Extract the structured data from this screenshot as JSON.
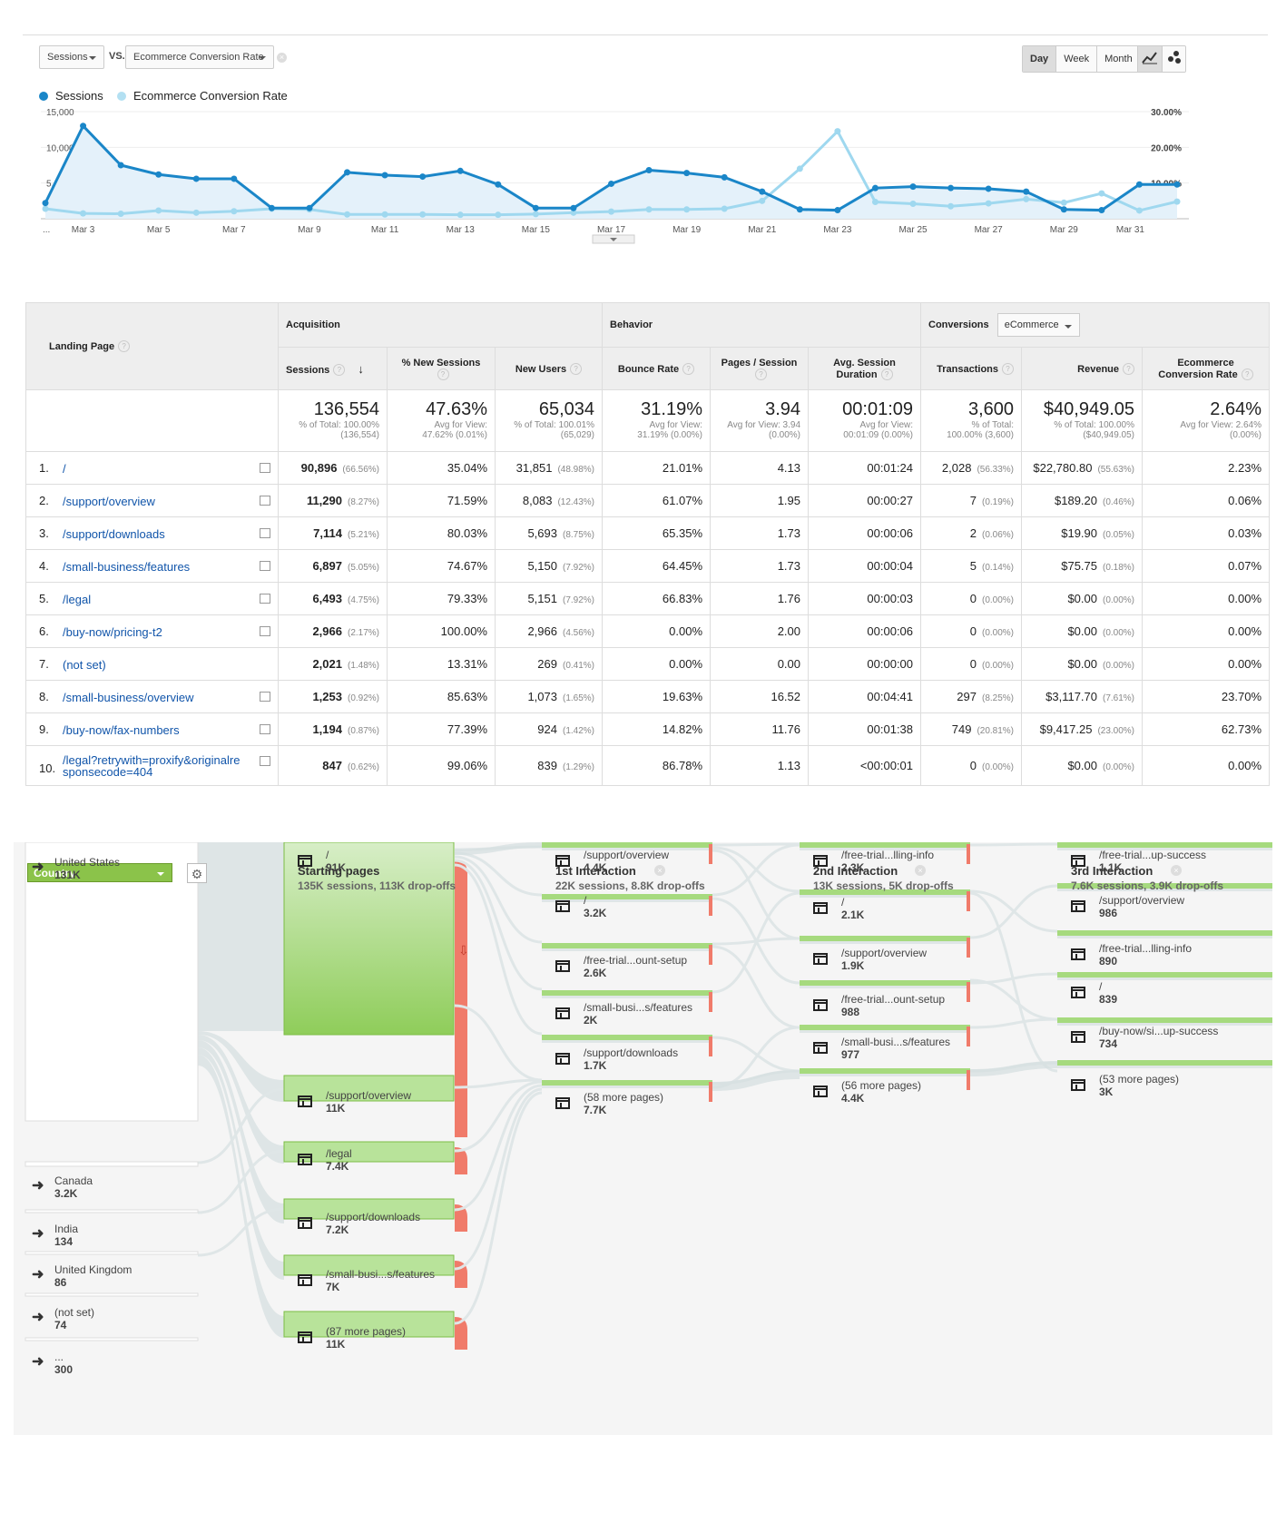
{
  "chart_controls": {
    "metric1": "Sessions",
    "vs_label": "VS.",
    "metric2": "Ecommerce Conversion Rate",
    "clear_icon": "close-circle-icon",
    "periods": [
      "Day",
      "Week",
      "Month"
    ],
    "active_period": "Day",
    "view_icons": [
      "line-chart-icon",
      "motion-chart-icon"
    ]
  },
  "chart_data": {
    "type": "line",
    "legend": "top-left",
    "x_tick_labels": [
      "...",
      "Mar 3",
      "Mar 5",
      "Mar 7",
      "Mar 9",
      "Mar 11",
      "Mar 13",
      "Mar 15",
      "Mar 17",
      "Mar 19",
      "Mar 21",
      "Mar 23",
      "Mar 25",
      "Mar 27",
      "Mar 29",
      "Mar 31"
    ],
    "y_left_ticks": [
      "15,000",
      "10,000",
      "5,000"
    ],
    "y_left_range": [
      0,
      15000
    ],
    "y_right_ticks": [
      "30.00%",
      "20.00%",
      "10.00%"
    ],
    "y_right_range": [
      0,
      30
    ],
    "series": [
      {
        "name": "Sessions",
        "color": "#1a86c8",
        "area": true,
        "axis": "left",
        "values": [
          2200,
          13000,
          7500,
          6200,
          5600,
          5600,
          1500,
          1500,
          6500,
          6100,
          5900,
          6700,
          4800,
          1500,
          1500,
          4900,
          6800,
          6400,
          5800,
          3800,
          1300,
          1200,
          4300,
          4500,
          4300,
          4200,
          3800,
          1300,
          1200,
          4800,
          4800
        ]
      },
      {
        "name": "Ecommerce Conversion Rate",
        "color": "#9fd8ef",
        "area": false,
        "axis": "right",
        "values": [
          2.8,
          1.5,
          1.4,
          2.3,
          1.7,
          2.1,
          2.8,
          2.6,
          1.2,
          1.2,
          1.2,
          1.1,
          1.1,
          1.3,
          1.7,
          2.0,
          2.6,
          2.6,
          2.8,
          5.0,
          14.0,
          24.5,
          4.7,
          4.2,
          3.5,
          4.3,
          5.5,
          4.5,
          7.1,
          2.3,
          4.8
        ]
      }
    ]
  },
  "table": {
    "landing_page_header": "Landing Page",
    "groups": {
      "acquisition": "Acquisition",
      "behavior": "Behavior",
      "conversions": "Conversions",
      "conversions_select": "eCommerce"
    },
    "columns": [
      "Sessions",
      "% New Sessions",
      "New Users",
      "Bounce Rate",
      "Pages / Session",
      "Avg. Session Duration",
      "Transactions",
      "Revenue",
      "Ecommerce Conversion Rate"
    ],
    "totals": [
      {
        "value": "136,554",
        "sub1": "% of Total: 100.00%",
        "sub2": "(136,554)"
      },
      {
        "value": "47.63%",
        "sub1": "Avg for View:",
        "sub2": "47.62% (0.01%)"
      },
      {
        "value": "65,034",
        "sub1": "% of Total: 100.01%",
        "sub2": "(65,029)"
      },
      {
        "value": "31.19%",
        "sub1": "Avg for View:",
        "sub2": "31.19% (0.00%)"
      },
      {
        "value": "3.94",
        "sub1": "Avg for View: 3.94",
        "sub2": "(0.00%)"
      },
      {
        "value": "00:01:09",
        "sub1": "Avg for View:",
        "sub2": "00:01:09 (0.00%)"
      },
      {
        "value": "3,600",
        "sub1": "% of Total:",
        "sub2": "100.00% (3,600)"
      },
      {
        "value": "$40,949.05",
        "sub1": "% of Total: 100.00%",
        "sub2": "($40,949.05)"
      },
      {
        "value": "2.64%",
        "sub1": "Avg for View: 2.64%",
        "sub2": "(0.00%)"
      }
    ],
    "rows": [
      {
        "num": "1.",
        "page": "/",
        "ext": true,
        "sessions": "90,896",
        "sessions_pct": "(66.56%)",
        "new_sessions": "35.04%",
        "new_users": "31,851",
        "new_users_pct": "(48.98%)",
        "bounce": "21.01%",
        "pages": "4.13",
        "duration": "00:01:24",
        "transactions": "2,028",
        "transactions_pct": "(56.33%)",
        "revenue": "$22,780.80",
        "revenue_pct": "(55.63%)",
        "conv": "2.23%"
      },
      {
        "num": "2.",
        "page": "/support/overview",
        "ext": true,
        "sessions": "11,290",
        "sessions_pct": "(8.27%)",
        "new_sessions": "71.59%",
        "new_users": "8,083",
        "new_users_pct": "(12.43%)",
        "bounce": "61.07%",
        "pages": "1.95",
        "duration": "00:00:27",
        "transactions": "7",
        "transactions_pct": "(0.19%)",
        "revenue": "$189.20",
        "revenue_pct": "(0.46%)",
        "conv": "0.06%"
      },
      {
        "num": "3.",
        "page": "/support/downloads",
        "ext": true,
        "sessions": "7,114",
        "sessions_pct": "(5.21%)",
        "new_sessions": "80.03%",
        "new_users": "5,693",
        "new_users_pct": "(8.75%)",
        "bounce": "65.35%",
        "pages": "1.73",
        "duration": "00:00:06",
        "transactions": "2",
        "transactions_pct": "(0.06%)",
        "revenue": "$19.90",
        "revenue_pct": "(0.05%)",
        "conv": "0.03%"
      },
      {
        "num": "4.",
        "page": "/small-business/features",
        "ext": true,
        "sessions": "6,897",
        "sessions_pct": "(5.05%)",
        "new_sessions": "74.67%",
        "new_users": "5,150",
        "new_users_pct": "(7.92%)",
        "bounce": "64.45%",
        "pages": "1.73",
        "duration": "00:00:04",
        "transactions": "5",
        "transactions_pct": "(0.14%)",
        "revenue": "$75.75",
        "revenue_pct": "(0.18%)",
        "conv": "0.07%"
      },
      {
        "num": "5.",
        "page": "/legal",
        "ext": true,
        "sessions": "6,493",
        "sessions_pct": "(4.75%)",
        "new_sessions": "79.33%",
        "new_users": "5,151",
        "new_users_pct": "(7.92%)",
        "bounce": "66.83%",
        "pages": "1.76",
        "duration": "00:00:03",
        "transactions": "0",
        "transactions_pct": "(0.00%)",
        "revenue": "$0.00",
        "revenue_pct": "(0.00%)",
        "conv": "0.00%"
      },
      {
        "num": "6.",
        "page": "/buy-now/pricing-t2",
        "ext": true,
        "sessions": "2,966",
        "sessions_pct": "(2.17%)",
        "new_sessions": "100.00%",
        "new_users": "2,966",
        "new_users_pct": "(4.56%)",
        "bounce": "0.00%",
        "pages": "2.00",
        "duration": "00:00:06",
        "transactions": "0",
        "transactions_pct": "(0.00%)",
        "revenue": "$0.00",
        "revenue_pct": "(0.00%)",
        "conv": "0.00%"
      },
      {
        "num": "7.",
        "page": "(not set)",
        "ext": false,
        "sessions": "2,021",
        "sessions_pct": "(1.48%)",
        "new_sessions": "13.31%",
        "new_users": "269",
        "new_users_pct": "(0.41%)",
        "bounce": "0.00%",
        "pages": "0.00",
        "duration": "00:00:00",
        "transactions": "0",
        "transactions_pct": "(0.00%)",
        "revenue": "$0.00",
        "revenue_pct": "(0.00%)",
        "conv": "0.00%"
      },
      {
        "num": "8.",
        "page": "/small-business/overview",
        "ext": true,
        "sessions": "1,253",
        "sessions_pct": "(0.92%)",
        "new_sessions": "85.63%",
        "new_users": "1,073",
        "new_users_pct": "(1.65%)",
        "bounce": "19.63%",
        "pages": "16.52",
        "duration": "00:04:41",
        "transactions": "297",
        "transactions_pct": "(8.25%)",
        "revenue": "$3,117.70",
        "revenue_pct": "(7.61%)",
        "conv": "23.70%"
      },
      {
        "num": "9.",
        "page": "/buy-now/fax-numbers",
        "ext": true,
        "sessions": "1,194",
        "sessions_pct": "(0.87%)",
        "new_sessions": "77.39%",
        "new_users": "924",
        "new_users_pct": "(1.42%)",
        "bounce": "14.82%",
        "pages": "11.76",
        "duration": "00:01:38",
        "transactions": "749",
        "transactions_pct": "(20.81%)",
        "revenue": "$9,417.25",
        "revenue_pct": "(23.00%)",
        "conv": "62.73%"
      },
      {
        "num": "10.",
        "page": "/legal?retrywith=proxify&originalresponsecode=404",
        "ext": true,
        "sessions": "847",
        "sessions_pct": "(0.62%)",
        "new_sessions": "99.06%",
        "new_users": "839",
        "new_users_pct": "(1.29%)",
        "bounce": "86.78%",
        "pages": "1.13",
        "duration": "<00:00:01",
        "transactions": "0",
        "transactions_pct": "(0.00%)",
        "revenue": "$0.00",
        "revenue_pct": "(0.00%)",
        "conv": "0.00%"
      }
    ]
  },
  "flow": {
    "dimension_select": "Country",
    "columns": [
      {
        "title": "Starting pages",
        "sub": "135K sessions, 113K drop-offs"
      },
      {
        "title": "1st Interaction",
        "sub": "22K sessions, 8.8K drop-offs"
      },
      {
        "title": "2nd Interaction",
        "sub": "13K sessions, 5K drop-offs"
      },
      {
        "title": "3rd Interaction",
        "sub": "7.6K sessions, 3.9K drop-offs"
      }
    ],
    "countries": [
      {
        "name": "United States",
        "value": "131K"
      },
      {
        "name": "Canada",
        "value": "3.2K"
      },
      {
        "name": "India",
        "value": "134"
      },
      {
        "name": "United Kingdom",
        "value": "86"
      },
      {
        "name": "(not set)",
        "value": "74"
      },
      {
        "name": "...",
        "value": "300"
      }
    ],
    "starting": [
      {
        "page": "/",
        "value": "91K"
      },
      {
        "page": "/support/overview",
        "value": "11K"
      },
      {
        "page": "/legal",
        "value": "7.4K"
      },
      {
        "page": "/support/downloads",
        "value": "7.2K"
      },
      {
        "page": "/small-busi...s/features",
        "value": "7K"
      },
      {
        "page": "(87 more pages)",
        "value": "11K"
      }
    ],
    "first": [
      {
        "page": "/support/overview",
        "value": "4.4K"
      },
      {
        "page": "/",
        "value": "3.2K"
      },
      {
        "page": "/free-trial...ount-setup",
        "value": "2.6K"
      },
      {
        "page": "/small-busi...s/features",
        "value": "2K"
      },
      {
        "page": "/support/downloads",
        "value": "1.7K"
      },
      {
        "page": "(58 more pages)",
        "value": "7.7K"
      }
    ],
    "second": [
      {
        "page": "/free-trial...lling-info",
        "value": "2.3K"
      },
      {
        "page": "/",
        "value": "2.1K"
      },
      {
        "page": "/support/overview",
        "value": "1.9K"
      },
      {
        "page": "/free-trial...ount-setup",
        "value": "988"
      },
      {
        "page": "/small-busi...s/features",
        "value": "977"
      },
      {
        "page": "(56 more pages)",
        "value": "4.4K"
      }
    ],
    "third": [
      {
        "page": "/free-trial...up-success",
        "value": "1.1K"
      },
      {
        "page": "/support/overview",
        "value": "986"
      },
      {
        "page": "/free-trial...lling-info",
        "value": "890"
      },
      {
        "page": "/",
        "value": "839"
      },
      {
        "page": "/buy-now/si...up-success",
        "value": "734"
      },
      {
        "page": "(53 more pages)",
        "value": "3K"
      }
    ]
  }
}
